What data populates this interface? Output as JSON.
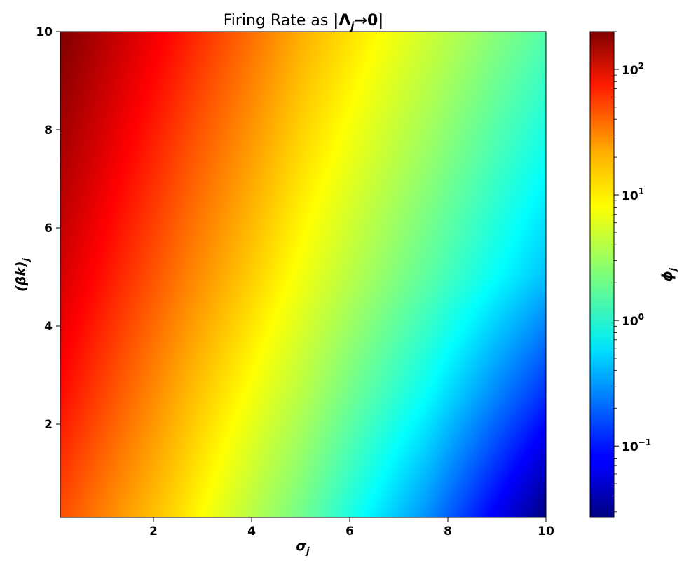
{
  "chart_data": {
    "type": "heatmap",
    "title_prefix": "Firing Rate as ",
    "title_math": {
      "lead": "|Λ",
      "sub": "j",
      "tail": "→0|"
    },
    "xlabel": {
      "base": "σ",
      "sub": "j"
    },
    "ylabel": {
      "base": "(βk)",
      "sub": "j"
    },
    "xlim": [
      0.1,
      10
    ],
    "ylim": [
      0.1,
      10
    ],
    "xticks": [
      2,
      4,
      6,
      8,
      10
    ],
    "yticks": [
      2,
      4,
      6,
      8,
      10
    ],
    "grid": false,
    "colormap": "jet",
    "colorbar": {
      "label": {
        "base": "ϕ",
        "sub": "j"
      },
      "scale": "log",
      "range": [
        0.027,
        200
      ],
      "ticks": [
        {
          "value": 0.1,
          "base": "10",
          "exp": "−1"
        },
        {
          "value": 1,
          "base": "10",
          "exp": "0"
        },
        {
          "value": 10,
          "base": "10",
          "exp": "1"
        },
        {
          "value": 100,
          "base": "10",
          "exp": "2"
        }
      ]
    },
    "grid_values": {
      "x": [
        0.1,
        2.575,
        5.05,
        7.525,
        10
      ],
      "y": [
        0.1,
        2.575,
        5.05,
        7.525,
        10
      ],
      "phi": [
        [
          33,
          9,
          2,
          0.3,
          0.027
        ],
        [
          60,
          14,
          3.7,
          0.8,
          0.12
        ],
        [
          95,
          23,
          6.3,
          1.8,
          0.45
        ],
        [
          140,
          35,
          9.5,
          3.0,
          0.85
        ],
        [
          200,
          55,
          14,
          4.8,
          1.6
        ]
      ]
    }
  }
}
